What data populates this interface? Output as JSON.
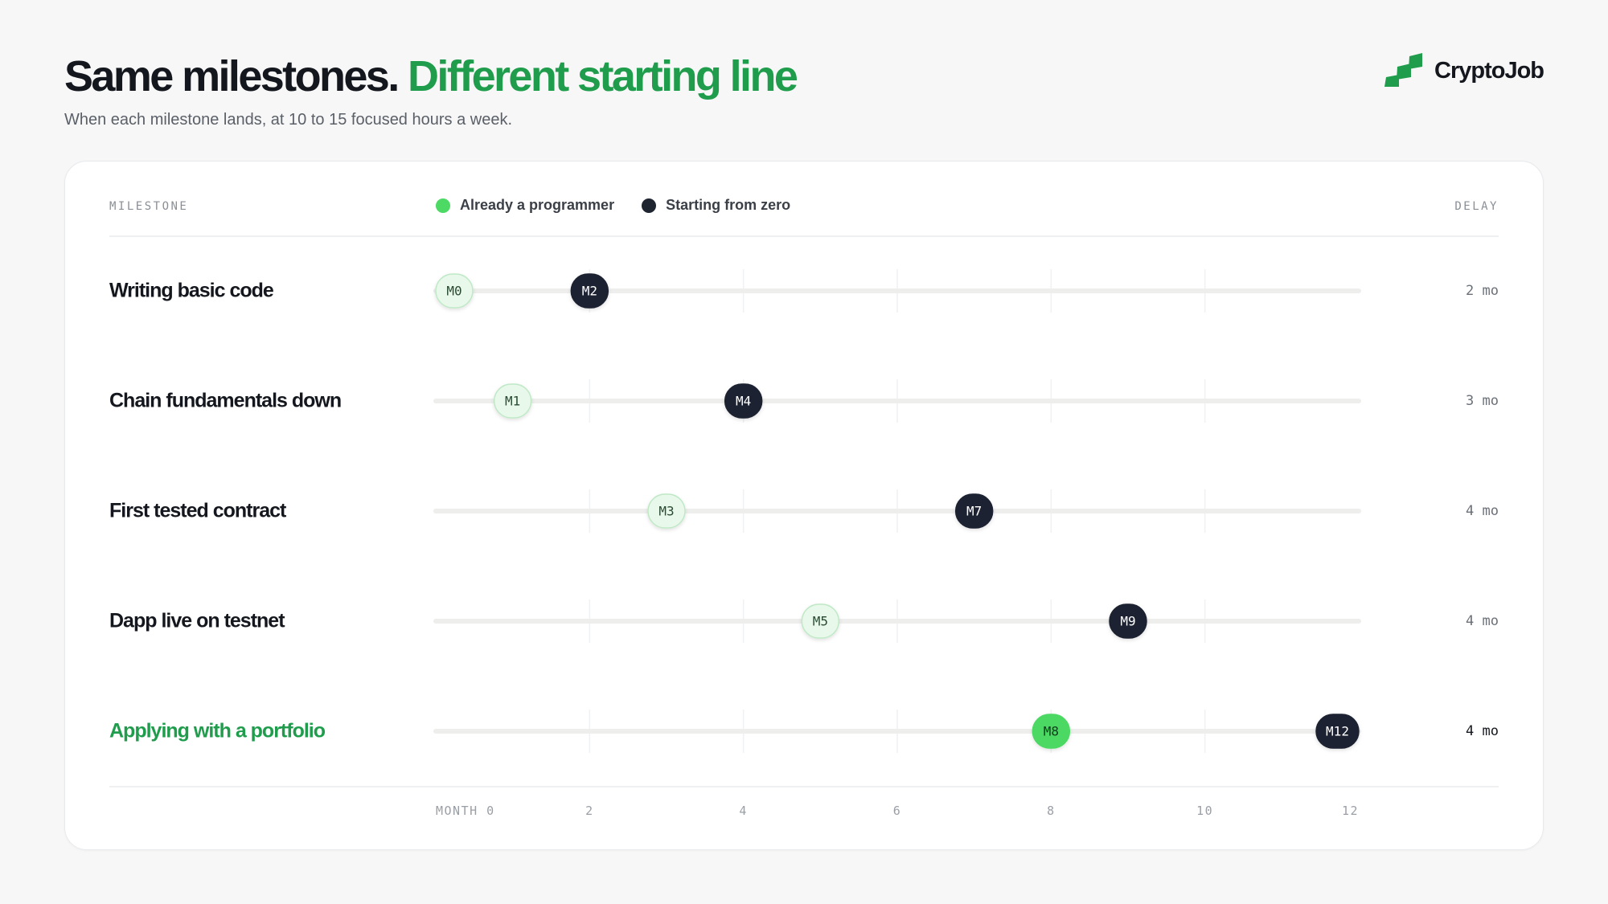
{
  "header": {
    "title_main": "Same milestones.",
    "title_accent": "Different starting line",
    "subtitle": "When each milestone lands, at 10 to 15 focused hours a week."
  },
  "brand": {
    "name": "CryptoJob",
    "icon": "stacked-bars-logo-icon"
  },
  "table": {
    "left_header": "MILESTONE",
    "right_header": "DELAY"
  },
  "colors": {
    "accent": "#1f9d4c",
    "programmer": "#4cd964",
    "zero": "#1e2430",
    "pill_light_fill": "#e8f8ea",
    "pill_light_stroke": "#bfe9c6",
    "track": "#eeeeec"
  },
  "chart_data": {
    "type": "dumbbell",
    "x_unit": "month",
    "xlim": [
      0,
      12
    ],
    "x_ticks": [
      0,
      2,
      4,
      6,
      8,
      10,
      12
    ],
    "x_tick_labels": [
      "MONTH 0",
      "2",
      "4",
      "6",
      "8",
      "10",
      "12"
    ],
    "series": [
      {
        "name": "Already a programmer"
      },
      {
        "name": "Starting from zero"
      }
    ],
    "rows": [
      {
        "label": "Writing basic code",
        "programmer": 0,
        "zero": 2,
        "programmer_label": "M0",
        "zero_label": "M2",
        "delay": "2 mo"
      },
      {
        "label": "Chain fundamentals down",
        "programmer": 1,
        "zero": 4,
        "programmer_label": "M1",
        "zero_label": "M4",
        "delay": "3 mo"
      },
      {
        "label": "First tested contract",
        "programmer": 3,
        "zero": 7,
        "programmer_label": "M3",
        "zero_label": "M7",
        "delay": "4 mo"
      },
      {
        "label": "Dapp live on testnet",
        "programmer": 5,
        "zero": 9,
        "programmer_label": "M5",
        "zero_label": "M9",
        "delay": "4 mo"
      },
      {
        "label": "Applying with a portfolio",
        "programmer": 8,
        "zero": 12,
        "programmer_label": "M8",
        "zero_label": "M12",
        "delay": "4 mo",
        "highlight": true
      }
    ]
  }
}
